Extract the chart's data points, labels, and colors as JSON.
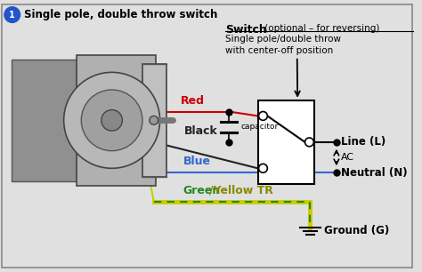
{
  "title": "Single pole, double throw switch",
  "bg_color": "#e0e0e0",
  "border_color": "#888888",
  "switch_bold": "Switch",
  "switch_normal": " (optional – for reversing)",
  "switch_desc1": "Single pole/double throw",
  "switch_desc2": "with center-off position",
  "capacitor_label": "capacitor",
  "ac_label": "AC",
  "wire_red": "#cc0000",
  "wire_black": "#222222",
  "wire_blue": "#3366cc",
  "wire_green": "#228822",
  "wire_yellow": "#cccc00",
  "label_red": "Red",
  "label_black": "Black",
  "label_blue": "Blue",
  "label_green": "Green",
  "label_yellow": "/Yellow TR",
  "label_line": "Line (L)",
  "label_neutral": "Neutral (N)",
  "label_ground": "Ground (G)"
}
